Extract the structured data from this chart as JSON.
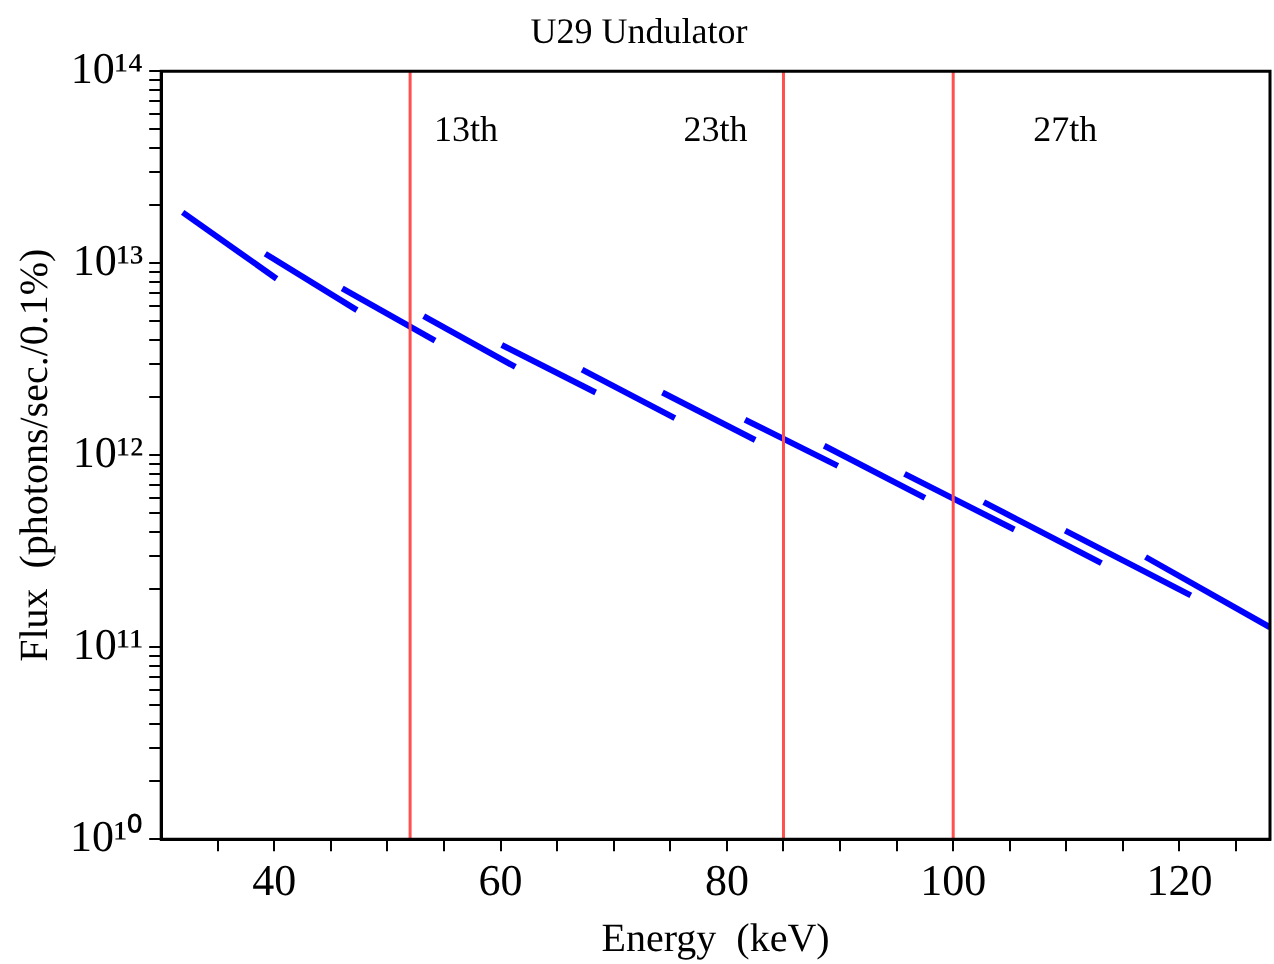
{
  "chart_data": {
    "type": "line",
    "title": "U29 Undulator",
    "xlabel": "Energy  (keV)",
    "ylabel": "Flux  (photons/sec./0.1%)",
    "log": "y",
    "grid": false,
    "legend": false,
    "marker": "none",
    "line_style": "solid",
    "xlim": [
      30,
      128
    ],
    "xticks": [
      {
        "value": 35,
        "label": null
      },
      40,
      {
        "value": 45,
        "label": null
      },
      {
        "value": 50,
        "label": null
      },
      {
        "value": 55,
        "label": null
      },
      60,
      {
        "value": 65,
        "label": null
      },
      {
        "value": 70,
        "label": null
      },
      {
        "value": 75,
        "label": null
      },
      80,
      {
        "value": 85,
        "label": null
      },
      {
        "value": 90,
        "label": null
      },
      {
        "value": 95,
        "label": null
      },
      100,
      {
        "value": 105,
        "label": null
      },
      {
        "value": 110,
        "label": null
      },
      {
        "value": 115,
        "label": null
      },
      120,
      {
        "value": 125,
        "label": null
      }
    ],
    "ylim": [
      10000000000.0,
      100000000000000.0
    ],
    "yticks": [
      {
        "value": 10000000000.0,
        "label": "10¹⁰"
      },
      {
        "value": 20000000000.0,
        "label": null
      },
      {
        "value": 30000000000.0,
        "label": null
      },
      {
        "value": 40000000000.0,
        "label": null
      },
      {
        "value": 50000000000.0,
        "label": null
      },
      {
        "value": 60000000000.0,
        "label": null
      },
      {
        "value": 70000000000.0,
        "label": null
      },
      {
        "value": 80000000000.0,
        "label": null
      },
      {
        "value": 90000000000.0,
        "label": null
      },
      {
        "value": 100000000000.0,
        "label": "10¹¹"
      },
      {
        "value": 200000000000.0,
        "label": null
      },
      {
        "value": 300000000000.0,
        "label": null
      },
      {
        "value": 400000000000.0,
        "label": null
      },
      {
        "value": 500000000000.0,
        "label": null
      },
      {
        "value": 600000000000.0,
        "label": null
      },
      {
        "value": 700000000000.0,
        "label": null
      },
      {
        "value": 800000000000.0,
        "label": null
      },
      {
        "value": 900000000000.0,
        "label": null
      },
      {
        "value": 1000000000000.0,
        "label": "10¹²"
      },
      {
        "value": 2000000000000.0,
        "label": null
      },
      {
        "value": 3000000000000.0,
        "label": null
      },
      {
        "value": 4000000000000.0,
        "label": null
      },
      {
        "value": 5000000000000.0,
        "label": null
      },
      {
        "value": 6000000000000.0,
        "label": null
      },
      {
        "value": 7000000000000.0,
        "label": null
      },
      {
        "value": 8000000000000.0,
        "label": null
      },
      {
        "value": 9000000000000.0,
        "label": null
      },
      {
        "value": 10000000000000.0,
        "label": "10¹³"
      },
      {
        "value": 20000000000000.0,
        "label": null
      },
      {
        "value": 30000000000000.0,
        "label": null
      },
      {
        "value": 40000000000000.0,
        "label": null
      },
      {
        "value": 50000000000000.0,
        "label": null
      },
      {
        "value": 60000000000000.0,
        "label": null
      },
      {
        "value": 70000000000000.0,
        "label": null
      },
      {
        "value": 80000000000000.0,
        "label": null
      },
      {
        "value": 90000000000000.0,
        "label": null
      },
      {
        "value": 100000000000000.0,
        "label": "10¹⁴"
      }
    ],
    "ref_lines": [
      {
        "axis": "x",
        "value": 52,
        "color": "#ff5050"
      },
      {
        "axis": "x",
        "value": 85,
        "color": "#ff5050"
      },
      {
        "axis": "x",
        "value": 100,
        "color": "#ff5050"
      }
    ],
    "annotations": [
      "13th",
      "23th",
      "27th"
    ],
    "series": [
      {
        "color": "#0000ff",
        "x": [
          31.9,
          40.2
        ],
        "values": [
          18400000000000.0,
          8300000000000.0
        ]
      },
      {
        "color": "#0000ff",
        "x": [
          39.2,
          47.3
        ],
        "values": [
          11200000000000.0,
          5700000000000.0
        ]
      },
      {
        "color": "#0000ff",
        "x": [
          46.0,
          54.2
        ],
        "values": [
          7400000000000.0,
          3950000000000.0
        ]
      },
      {
        "color": "#0000ff",
        "x": [
          53.2,
          61.3
        ],
        "values": [
          5300000000000.0,
          2880000000000.0
        ]
      },
      {
        "color": "#0000ff",
        "x": [
          60.1,
          68.4
        ],
        "values": [
          3750000000000.0,
          2120000000000.0
        ]
      },
      {
        "color": "#0000ff",
        "x": [
          67.2,
          75.4
        ],
        "values": [
          2790000000000.0,
          1560000000000.0
        ]
      },
      {
        "color": "#0000ff",
        "x": [
          74.3,
          82.5
        ],
        "values": [
          2120000000000.0,
          1200000000000.0
        ]
      },
      {
        "color": "#0000ff",
        "x": [
          81.6,
          89.8
        ],
        "values": [
          1530000000000.0,
          880000000000.0
        ]
      },
      {
        "color": "#0000ff",
        "x": [
          88.6,
          97.5
        ],
        "values": [
          1120000000000.0,
          600000000000.0
        ]
      },
      {
        "color": "#0000ff",
        "x": [
          95.7,
          105.4
        ],
        "values": [
          800000000000.0,
          410000000000.0
        ]
      },
      {
        "color": "#0000ff",
        "x": [
          102.7,
          113.1
        ],
        "values": [
          570000000000.0,
          274000000000.0
        ]
      },
      {
        "color": "#0000ff",
        "x": [
          109.9,
          121.0
        ],
        "values": [
          405000000000.0,
          186000000000.0
        ]
      },
      {
        "color": "#0000ff",
        "x": [
          117.0,
          128
        ],
        "values": [
          295000000000.0,
          127000000000.0
        ]
      }
    ]
  }
}
